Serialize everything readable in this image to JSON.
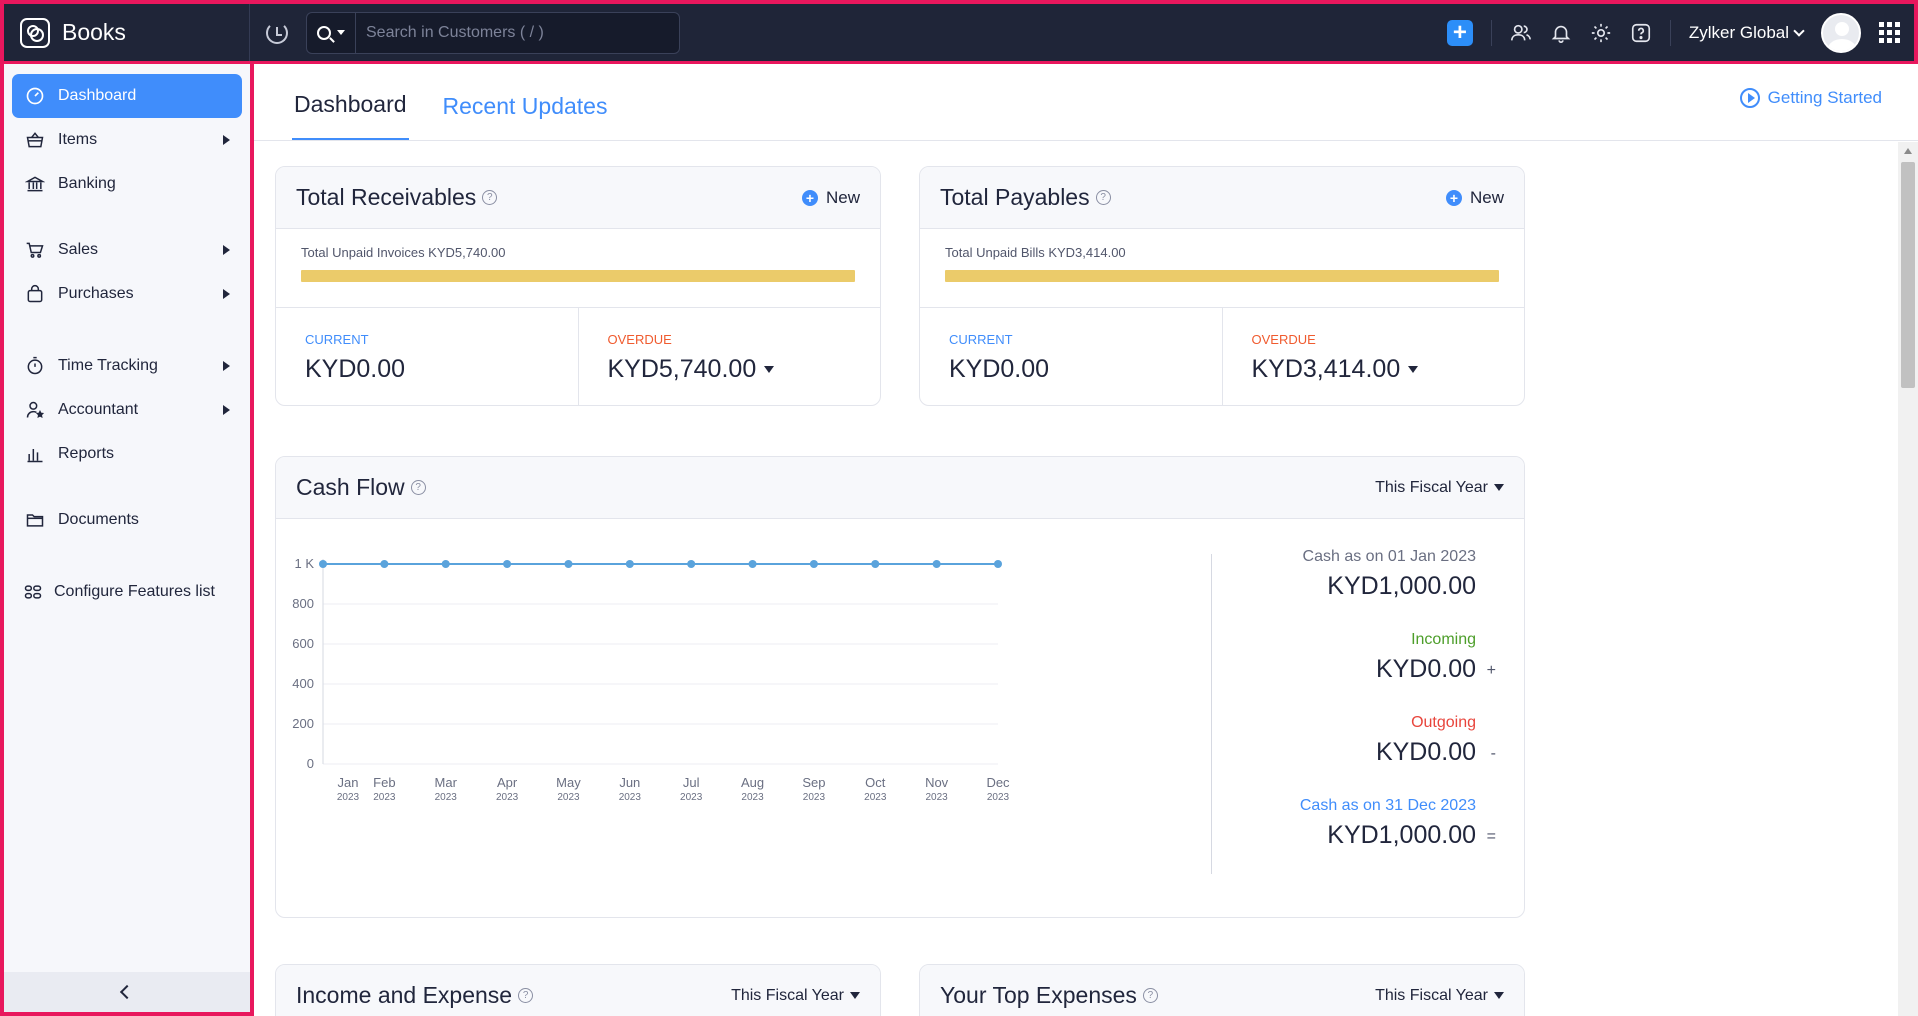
{
  "app": {
    "name": "Books",
    "search_placeholder": "Search in Customers ( / )",
    "org_name": "Zylker Global"
  },
  "sidebar": {
    "items": [
      {
        "label": "Dashboard",
        "icon": "dashboard-icon",
        "active": true,
        "has_submenu": false
      },
      {
        "label": "Items",
        "icon": "basket-icon",
        "active": false,
        "has_submenu": true
      },
      {
        "label": "Banking",
        "icon": "bank-icon",
        "active": false,
        "has_submenu": false
      },
      {
        "label": "Sales",
        "icon": "cart-icon",
        "active": false,
        "has_submenu": true
      },
      {
        "label": "Purchases",
        "icon": "bag-icon",
        "active": false,
        "has_submenu": true
      },
      {
        "label": "Time Tracking",
        "icon": "stopwatch-icon",
        "active": false,
        "has_submenu": true
      },
      {
        "label": "Accountant",
        "icon": "accountant-icon",
        "active": false,
        "has_submenu": true
      },
      {
        "label": "Reports",
        "icon": "bar-chart-icon",
        "active": false,
        "has_submenu": false
      },
      {
        "label": "Documents",
        "icon": "folder-icon",
        "active": false,
        "has_submenu": false
      },
      {
        "label": "Configure Features list",
        "icon": "configure-icon",
        "active": false,
        "has_submenu": false
      }
    ]
  },
  "tabs": {
    "dashboard": "Dashboard",
    "recent_updates": "Recent Updates",
    "getting_started": "Getting Started"
  },
  "receivables": {
    "title": "Total Receivables",
    "new_label": "New",
    "unpaid_text": "Total Unpaid Invoices KYD5,740.00",
    "current_label": "CURRENT",
    "current_value": "KYD0.00",
    "overdue_label": "OVERDUE",
    "overdue_value": "KYD5,740.00"
  },
  "payables": {
    "title": "Total Payables",
    "new_label": "New",
    "unpaid_text": "Total Unpaid Bills KYD3,414.00",
    "current_label": "CURRENT",
    "current_value": "KYD0.00",
    "overdue_label": "OVERDUE",
    "overdue_value": "KYD3,414.00"
  },
  "cash_flow": {
    "title": "Cash Flow",
    "period": "This Fiscal Year",
    "opening_label": "Cash as on 01 Jan 2023",
    "opening_value": "KYD1,000.00",
    "incoming_label": "Incoming",
    "incoming_value": "KYD0.00",
    "incoming_op": "+",
    "outgoing_label": "Outgoing",
    "outgoing_value": "KYD0.00",
    "outgoing_op": "-",
    "closing_label": "Cash as on 31 Dec 2023",
    "closing_value": "KYD1,000.00",
    "closing_op": "="
  },
  "income_expense": {
    "title": "Income and Expense",
    "period": "This Fiscal Year"
  },
  "top_expenses": {
    "title": "Your Top Expenses",
    "period": "This Fiscal Year"
  },
  "colors": {
    "accent": "#408dfb",
    "topbar": "#1f2538",
    "bar_fill": "#ebcb6a",
    "line": "#5aa3dc",
    "highlight_border": "#e8175d"
  },
  "chart_data": {
    "type": "line",
    "categories": [
      "Jan",
      "Feb",
      "Mar",
      "Apr",
      "May",
      "Jun",
      "Jul",
      "Aug",
      "Sep",
      "Oct",
      "Nov",
      "Dec"
    ],
    "category_years": [
      "2023",
      "2023",
      "2023",
      "2023",
      "2023",
      "2023",
      "2023",
      "2023",
      "2023",
      "2023",
      "2023",
      "2023"
    ],
    "series": [
      {
        "values": [
          1000,
          1000,
          1000,
          1000,
          1000,
          1000,
          1000,
          1000,
          1000,
          1000,
          1000,
          1000
        ]
      }
    ],
    "y_ticks": [
      "0",
      "200",
      "400",
      "600",
      "800",
      "1 K"
    ],
    "y_tick_values": [
      0,
      200,
      400,
      600,
      800,
      1000
    ],
    "ylim": [
      0,
      1000
    ],
    "grid": true
  }
}
